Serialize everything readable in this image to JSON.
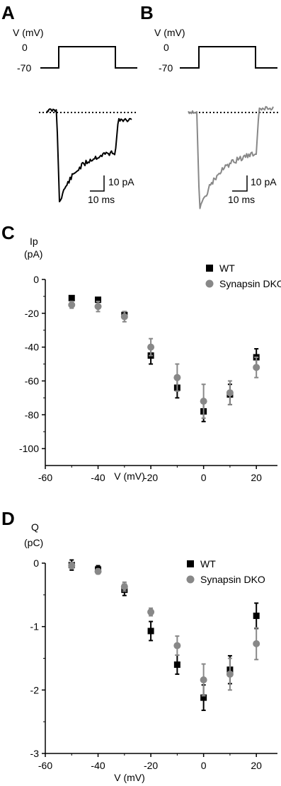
{
  "panels": {
    "A": {
      "letter": "A",
      "voltage_label": "V (mV)",
      "level_high": "0",
      "level_low": "-70",
      "scale_current": "10 pA",
      "scale_time": "10 ms",
      "trace_color": "#000000"
    },
    "B": {
      "letter": "B",
      "voltage_label": "V (mV)",
      "level_high": "0",
      "level_low": "-70",
      "scale_current": "10 pA",
      "scale_time": "10 ms",
      "trace_color": "#888888"
    },
    "C": {
      "letter": "C"
    },
    "D": {
      "letter": "D"
    }
  },
  "chart_data": [
    {
      "type": "scatter",
      "panel": "C",
      "ylabel_line1": "Ip",
      "ylabel_line2": "(pA)",
      "xlabel": "V (mV)",
      "xlim": [
        -60,
        28
      ],
      "ylim": [
        -110,
        0
      ],
      "xticks": [
        -60,
        -40,
        -20,
        0,
        20
      ],
      "yticks": [
        0,
        -20,
        -40,
        -60,
        -80,
        -100
      ],
      "legend_position": "top-right",
      "series": [
        {
          "name": "WT",
          "marker": "square",
          "color": "#000000",
          "x": [
            -50,
            -40,
            -30,
            -20,
            -10,
            0,
            10,
            20
          ],
          "y": [
            -11,
            -12,
            -21,
            -45,
            -64,
            -78,
            -68,
            -46
          ],
          "err": [
            1,
            1,
            2,
            5,
            6,
            6,
            6,
            5
          ]
        },
        {
          "name": "Synapsin DKO",
          "marker": "circle",
          "color": "#888888",
          "x": [
            -50,
            -40,
            -30,
            -20,
            -10,
            0,
            10,
            20
          ],
          "y": [
            -15,
            -16,
            -22,
            -40,
            -58,
            -72,
            -67,
            -52
          ],
          "err": [
            2,
            3,
            3,
            5,
            8,
            10,
            7,
            6
          ]
        }
      ]
    },
    {
      "type": "scatter",
      "panel": "D",
      "ylabel_line1": "Q",
      "ylabel_line2": "(pC)",
      "xlabel": "V (mV)",
      "xlim": [
        -60,
        28
      ],
      "ylim": [
        -3,
        0
      ],
      "xticks": [
        -60,
        -40,
        -20,
        0,
        20
      ],
      "yticks": [
        0,
        -1,
        -2,
        -3
      ],
      "legend_position": "top-right",
      "series": [
        {
          "name": "WT",
          "marker": "square",
          "color": "#000000",
          "x": [
            -50,
            -40,
            -30,
            -20,
            -10,
            0,
            10,
            20
          ],
          "y": [
            -0.03,
            -0.1,
            -0.42,
            -1.07,
            -1.6,
            -2.12,
            -1.68,
            -0.83
          ],
          "err": [
            0.08,
            0.06,
            0.09,
            0.15,
            0.15,
            0.2,
            0.22,
            0.2
          ]
        },
        {
          "name": "Synapsin DKO",
          "marker": "circle",
          "color": "#888888",
          "x": [
            -50,
            -40,
            -30,
            -20,
            -10,
            0,
            10,
            20
          ],
          "y": [
            -0.04,
            -0.13,
            -0.37,
            -0.77,
            -1.3,
            -1.84,
            -1.75,
            -1.27
          ],
          "err": [
            0.05,
            0.04,
            0.07,
            0.06,
            0.15,
            0.25,
            0.25,
            0.25
          ]
        }
      ]
    }
  ]
}
